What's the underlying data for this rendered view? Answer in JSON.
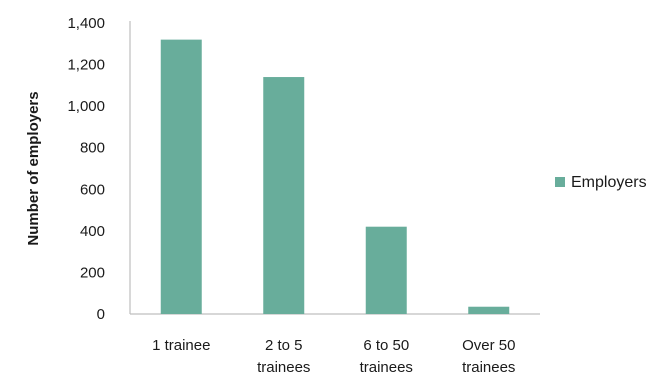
{
  "chart_data": {
    "type": "bar",
    "categories": [
      [
        "1 trainee"
      ],
      [
        "2 to 5",
        "trainees"
      ],
      [
        "6 to 50",
        "trainees"
      ],
      [
        "Over 50",
        "trainees"
      ]
    ],
    "series": [
      {
        "name": "Employers",
        "values": [
          1320,
          1140,
          420,
          35
        ],
        "color": "#68ad9b"
      }
    ],
    "title": "",
    "xlabel": "",
    "ylabel": "Number of employers",
    "ylim": [
      0,
      1400
    ],
    "yticks": [
      0,
      200,
      400,
      600,
      800,
      1000,
      1200,
      1400
    ],
    "ytick_labels": [
      "0",
      "200",
      "400",
      "600",
      "800",
      "1,000",
      "1,200",
      "1,400"
    ],
    "grid": false,
    "legend_position": "right",
    "axis_color": "#bfbfbf"
  }
}
